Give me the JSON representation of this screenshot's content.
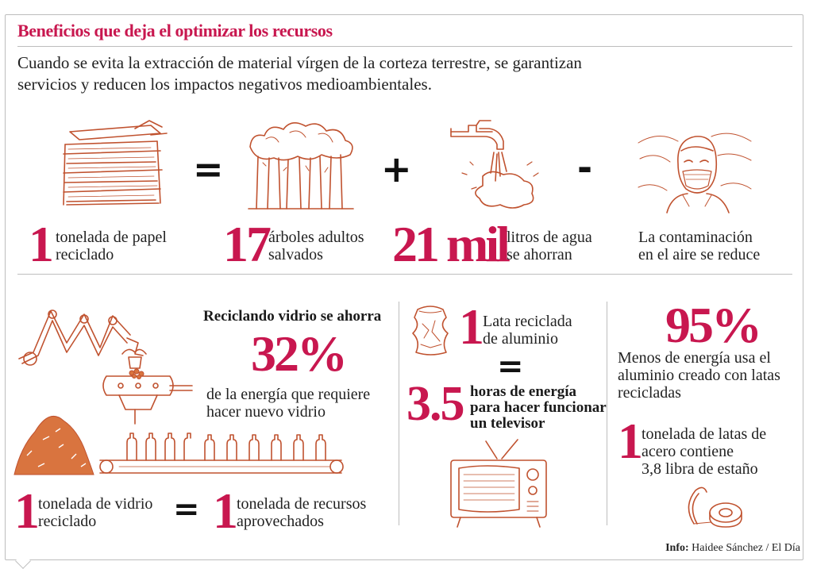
{
  "header": {
    "title": "Beneficios que deja el optimizar los recursos",
    "intro_line1": "Cuando se evita la extracción de material vírgen de la corteza terrestre, se garantizan",
    "intro_line2": "servicios  y reducen los impactos negativos  medioambientales."
  },
  "top_row": {
    "paper": {
      "number": "1",
      "line1": "tonelada de papel",
      "line2": "reciclado",
      "icon": "paper-stack-icon"
    },
    "equals": "=",
    "trees": {
      "number": "17",
      "line1": "árboles adultos",
      "line2": "salvados",
      "icon": "forest-icon"
    },
    "plus": "+",
    "water": {
      "number": "21 mil",
      "line1": "litros de agua",
      "line2": "se ahorran",
      "icon": "faucet-icon"
    },
    "minus": "-",
    "air": {
      "line1": "La contaminación",
      "line2": "en el aire se reduce",
      "icon": "masked-person-icon"
    }
  },
  "glass": {
    "headline": "Reciclando vidrio se ahorra",
    "percent": "32%",
    "line1": "de la energía que requiere",
    "line2": "hacer nuevo vidrio",
    "left_number": "1",
    "left_line1": "tonelada de vidrio",
    "left_line2": "reciclado",
    "equals": "=",
    "right_number": "1",
    "right_line1": "tonelada de recursos",
    "right_line2": "aprovechados",
    "icon": "glass-factory-icon"
  },
  "aluminum": {
    "number": "1",
    "line1": "Lata reciclada",
    "line2": "de aluminio",
    "equals": "=",
    "hours": "3.5",
    "hours_line1": "horas de energía",
    "hours_line2": "para hacer funcionar",
    "hours_line3": "un televisor",
    "can_icon": "crushed-can-icon",
    "tv_icon": "television-icon"
  },
  "steel": {
    "percent": "95%",
    "line1": "Menos de energía usa el",
    "line2": "aluminio creado con latas",
    "line3": "recicladas",
    "number": "1",
    "t_line1": "tonelada de latas de",
    "t_line2": "acero contiene",
    "t_line3": "3,8 libra de estaño",
    "icon": "tin-roll-icon"
  },
  "footer": {
    "label": "Info:",
    "credit": "Haidee Sánchez / El Día"
  },
  "colors": {
    "accent": "#c8174f",
    "illustration": "#c0522f",
    "rule": "#bdbdbd"
  }
}
